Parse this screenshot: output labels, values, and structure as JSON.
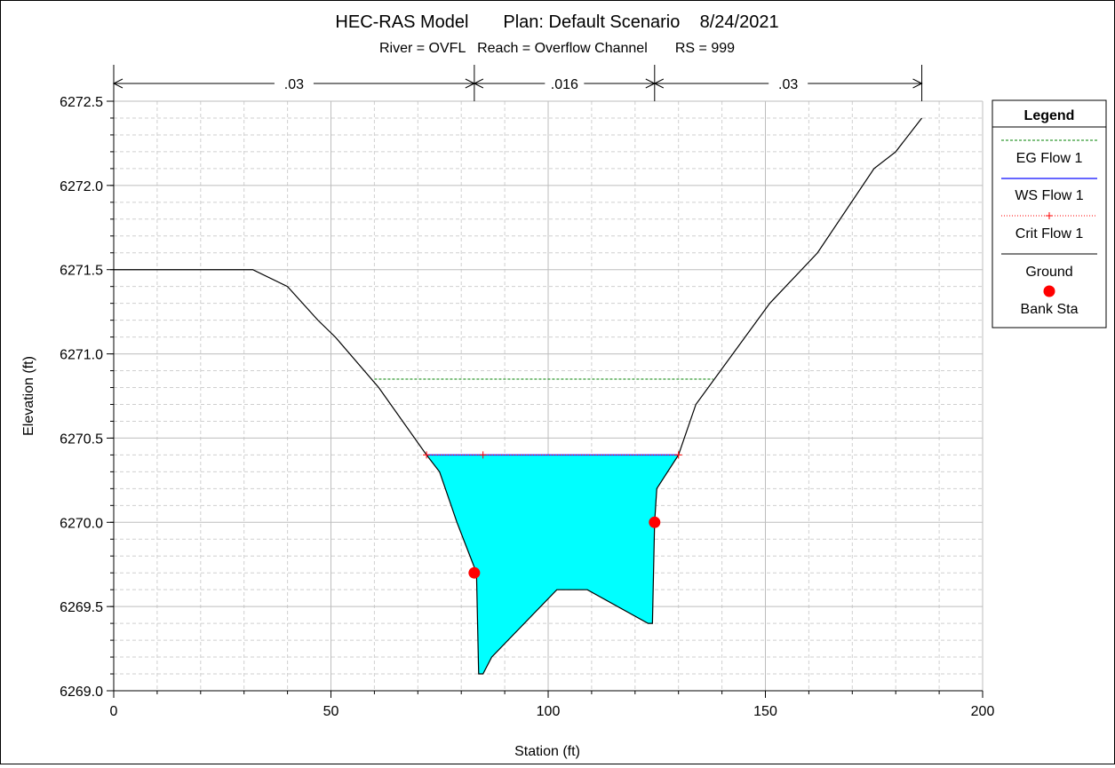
{
  "chart_data": {
    "type": "line",
    "title": "HEC-RAS Model       Plan: Default Scenario    8/24/2021",
    "subtitle": "River = OVFL   Reach = Overflow Channel       RS = 999",
    "xlabel": "Station (ft)",
    "ylabel": "Elevation (ft)",
    "xlim": [
      0,
      200
    ],
    "ylim": [
      6269.0,
      6272.5
    ],
    "x_ticks": [
      "0",
      "50",
      "100",
      "150",
      "200"
    ],
    "y_ticks": [
      "6269.0",
      "6269.5",
      "6270.0",
      "6270.5",
      "6271.0",
      "6271.5",
      "6272.0",
      "6272.5"
    ],
    "grid": true,
    "legend_position": "right",
    "manning_n": [
      {
        "label": ".03",
        "from": 0,
        "to": 83
      },
      {
        "label": ".016",
        "from": 83,
        "to": 124.5
      },
      {
        "label": ".03",
        "from": 124.5,
        "to": 186
      }
    ],
    "ground": {
      "name": "Ground",
      "color": "#000000",
      "x": [
        0,
        32,
        40,
        47,
        51,
        61,
        72,
        75,
        79,
        82,
        83.5,
        84,
        85,
        87,
        102,
        109,
        123,
        124,
        124.5,
        125,
        130,
        134,
        151,
        162,
        175,
        180,
        186
      ],
      "y": [
        6271.5,
        6271.5,
        6271.4,
        6271.2,
        6271.1,
        6270.8,
        6270.4,
        6270.3,
        6270.0,
        6269.8,
        6269.7,
        6269.1,
        6269.1,
        6269.2,
        6269.6,
        6269.6,
        6269.4,
        6269.4,
        6270.0,
        6270.2,
        6270.4,
        6270.7,
        6271.3,
        6271.6,
        6272.1,
        6272.2,
        6272.4
      ]
    },
    "series": [
      {
        "name": "EG Flow 1",
        "color": "#008000",
        "style": "dashed",
        "x": [
          60,
          138
        ],
        "y": [
          6270.85,
          6270.85
        ]
      },
      {
        "name": "WS Flow 1",
        "color": "#3333ff",
        "style": "solid",
        "x": [
          72,
          130
        ],
        "y": [
          6270.4,
          6270.4
        ]
      },
      {
        "name": "Crit Flow 1",
        "color": "#ff0000",
        "style": "dotted-plus",
        "x": [
          72,
          85,
          130
        ],
        "y": [
          6270.4,
          6270.4,
          6270.4
        ]
      }
    ],
    "bank_stations": {
      "name": "Bank Sta",
      "color": "#ff0000",
      "x": [
        83,
        124.5
      ],
      "y": [
        6269.7,
        6270.0
      ]
    },
    "water_fill_color": "#00ffff",
    "legend": {
      "title": "Legend",
      "entries": [
        "EG Flow 1",
        "WS Flow 1",
        "Crit Flow 1",
        "Ground",
        "Bank Sta"
      ]
    }
  }
}
